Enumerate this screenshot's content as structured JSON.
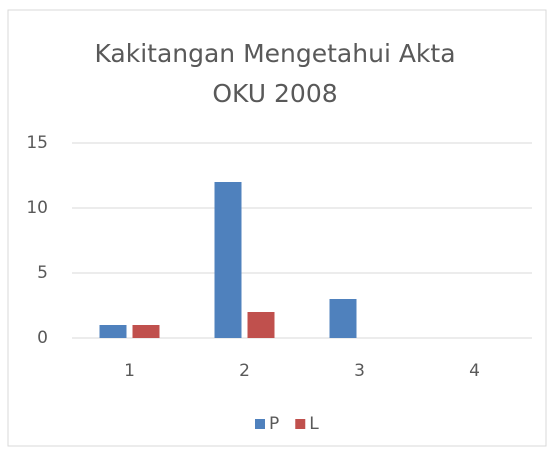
{
  "chart_data": {
    "type": "bar",
    "title": "Kakitangan Mengetahui Akta OKU 2008",
    "categories": [
      "1",
      "2",
      "3",
      "4"
    ],
    "series": [
      {
        "name": "P",
        "color": "#4f81bd",
        "values": [
          1,
          12,
          3,
          0
        ]
      },
      {
        "name": "L",
        "color": "#c0504d",
        "values": [
          1,
          2,
          0,
          0
        ]
      }
    ],
    "ylim": [
      0,
      15
    ],
    "yticks": [
      0,
      5,
      10,
      15
    ],
    "grid": true,
    "legend": "bottom"
  }
}
